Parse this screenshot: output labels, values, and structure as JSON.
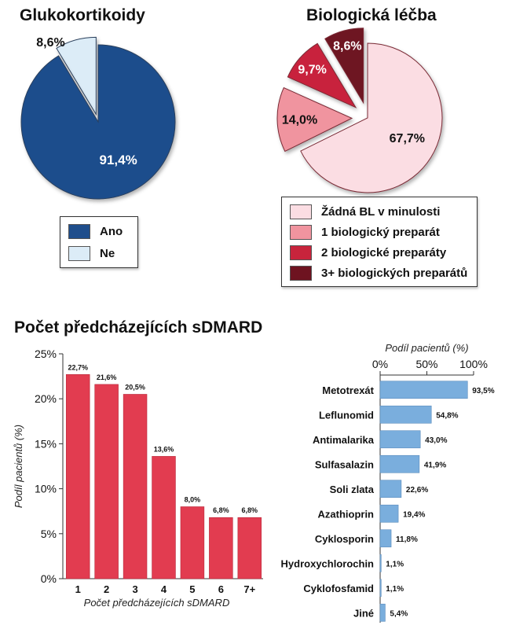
{
  "chart_data": [
    {
      "type": "pie",
      "title": "Glukokortikoidy",
      "categories": [
        "Ano",
        "Ne"
      ],
      "values": [
        91.4,
        8.6
      ],
      "value_labels": [
        "91,4%",
        "8,6%"
      ],
      "colors": [
        "#1f4e8c",
        "#dcecf7"
      ],
      "exploded": "Ne",
      "legend": {
        "placement": "bottom",
        "items": [
          {
            "label": "Ano",
            "color": "#1f4e8c"
          },
          {
            "label": "Ne",
            "color": "#dcecf7"
          }
        ]
      }
    },
    {
      "type": "pie",
      "title": "Biologická léčba",
      "categories": [
        "Žádná BL v minulosti",
        "1 biologický preparát",
        "2 biologické preparáty",
        "3+ biologických preparátů"
      ],
      "values": [
        67.7,
        14.0,
        9.7,
        8.6
      ],
      "value_labels": [
        "67,7%",
        "14,0%",
        "9,7%",
        "8,6%"
      ],
      "colors": [
        "#fbdde3",
        "#f0949f",
        "#c8243c",
        "#6e1320"
      ],
      "legend": {
        "placement": "bottom",
        "items": [
          {
            "label": "Žádná BL v minulosti",
            "color": "#fbdde3"
          },
          {
            "label": "1 biologický preparát",
            "color": "#f0949f"
          },
          {
            "label": "2 biologické preparáty",
            "color": "#c8243c"
          },
          {
            "label": "3+ biologických preparátů",
            "color": "#6e1320"
          }
        ]
      }
    },
    {
      "type": "bar",
      "title": "Počet předcházejících sDMARD",
      "categories": [
        "1",
        "2",
        "3",
        "4",
        "5",
        "6",
        "7+"
      ],
      "values": [
        22.7,
        21.6,
        20.5,
        13.6,
        8.0,
        6.8,
        6.8
      ],
      "value_labels": [
        "22,7%",
        "21,6%",
        "20,5%",
        "13,6%",
        "8,0%",
        "6,8%",
        "6,8%"
      ],
      "xlabel": "Počet předcházejících sDMARD",
      "ylabel": "Podíl pacientů (%)",
      "ylim": [
        0,
        25
      ],
      "yticks": [
        0,
        5,
        10,
        15,
        20,
        25
      ],
      "ytick_labels": [
        "0%",
        "5%",
        "10%",
        "15%",
        "20%",
        "25%"
      ],
      "color": "#e23c50",
      "grid": false
    },
    {
      "type": "bar",
      "orientation": "horizontal",
      "categories": [
        "Metotrexát",
        "Leflunomid",
        "Antimalarika",
        "Sulfasalazin",
        "Soli zlata",
        "Azathioprin",
        "Cyklosporin",
        "Hydroxychlorochin",
        "Cyklofosfamid",
        "Jiné"
      ],
      "values": [
        93.5,
        54.8,
        43.0,
        41.9,
        22.6,
        19.4,
        11.8,
        1.1,
        1.1,
        5.4
      ],
      "value_labels": [
        "93,5%",
        "54,8%",
        "43,0%",
        "41,9%",
        "22,6%",
        "19,4%",
        "11,8%",
        "1,1%",
        "1,1%",
        "5,4%"
      ],
      "xlabel": "Podíl pacientů (%)",
      "xlim": [
        0,
        100
      ],
      "xticks": [
        0,
        50,
        100
      ],
      "xtick_labels": [
        "0%",
        "50%",
        "100%"
      ],
      "xaxis_position": "top",
      "color": "#7aaedd",
      "grid": false
    }
  ]
}
